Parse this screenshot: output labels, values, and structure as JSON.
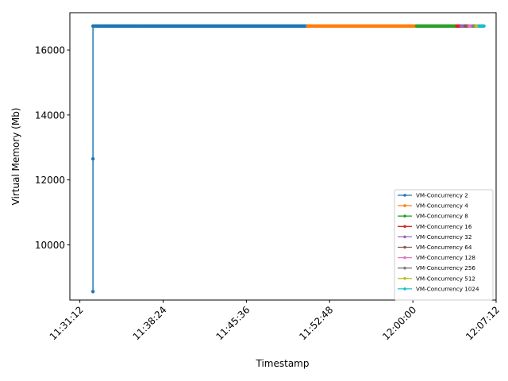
{
  "chart_data": {
    "type": "line",
    "title": "",
    "xlabel": "Timestamp",
    "ylabel": "Virtual Memory (Mb)",
    "xlim": [
      "11:30:20",
      "12:07:12"
    ],
    "ylim": [
      8300,
      17150
    ],
    "x_ticks": [
      "11:31:12",
      "11:38:24",
      "11:45:36",
      "11:52:48",
      "12:00:00",
      "12:07:12"
    ],
    "y_ticks": [
      10000,
      12000,
      14000,
      16000
    ],
    "grid": false,
    "legend_position": "lower-right",
    "series": [
      {
        "name": "VM-Concurrency 2",
        "color": "#1f77b4",
        "start": "11:32:20",
        "end": "11:50:54",
        "values": [
          8560,
          12650,
          16740,
          16740
        ]
      },
      {
        "name": "VM-Concurrency 4",
        "color": "#ff7f0e",
        "start": "11:50:54",
        "end": "12:00:20",
        "values": [
          16740,
          16740
        ]
      },
      {
        "name": "VM-Concurrency 8",
        "color": "#2ca02c",
        "start": "12:00:20",
        "end": "12:03:48",
        "values": [
          16740,
          16740
        ]
      },
      {
        "name": "VM-Concurrency 16",
        "color": "#d62728",
        "start": "12:03:48",
        "end": "12:04:12",
        "values": [
          16740,
          16740
        ]
      },
      {
        "name": "VM-Concurrency 32",
        "color": "#9467bd",
        "start": "12:04:12",
        "end": "12:04:32",
        "values": [
          16740,
          16740
        ]
      },
      {
        "name": "VM-Concurrency 64",
        "color": "#8c564b",
        "start": "12:04:32",
        "end": "12:04:52",
        "values": [
          16740,
          16740
        ]
      },
      {
        "name": "VM-Concurrency 128",
        "color": "#e377c2",
        "start": "12:04:52",
        "end": "12:05:12",
        "values": [
          16740,
          16740
        ]
      },
      {
        "name": "VM-Concurrency 256",
        "color": "#7f7f7f",
        "start": "12:05:12",
        "end": "12:05:28",
        "values": [
          16740,
          16740
        ]
      },
      {
        "name": "VM-Concurrency 512",
        "color": "#bcbd22",
        "start": "12:05:28",
        "end": "12:05:44",
        "values": [
          16740,
          16740
        ]
      },
      {
        "name": "VM-Concurrency 1024",
        "color": "#17becf",
        "start": "12:05:44",
        "end": "12:06:10",
        "values": [
          16740,
          16740
        ]
      }
    ]
  }
}
